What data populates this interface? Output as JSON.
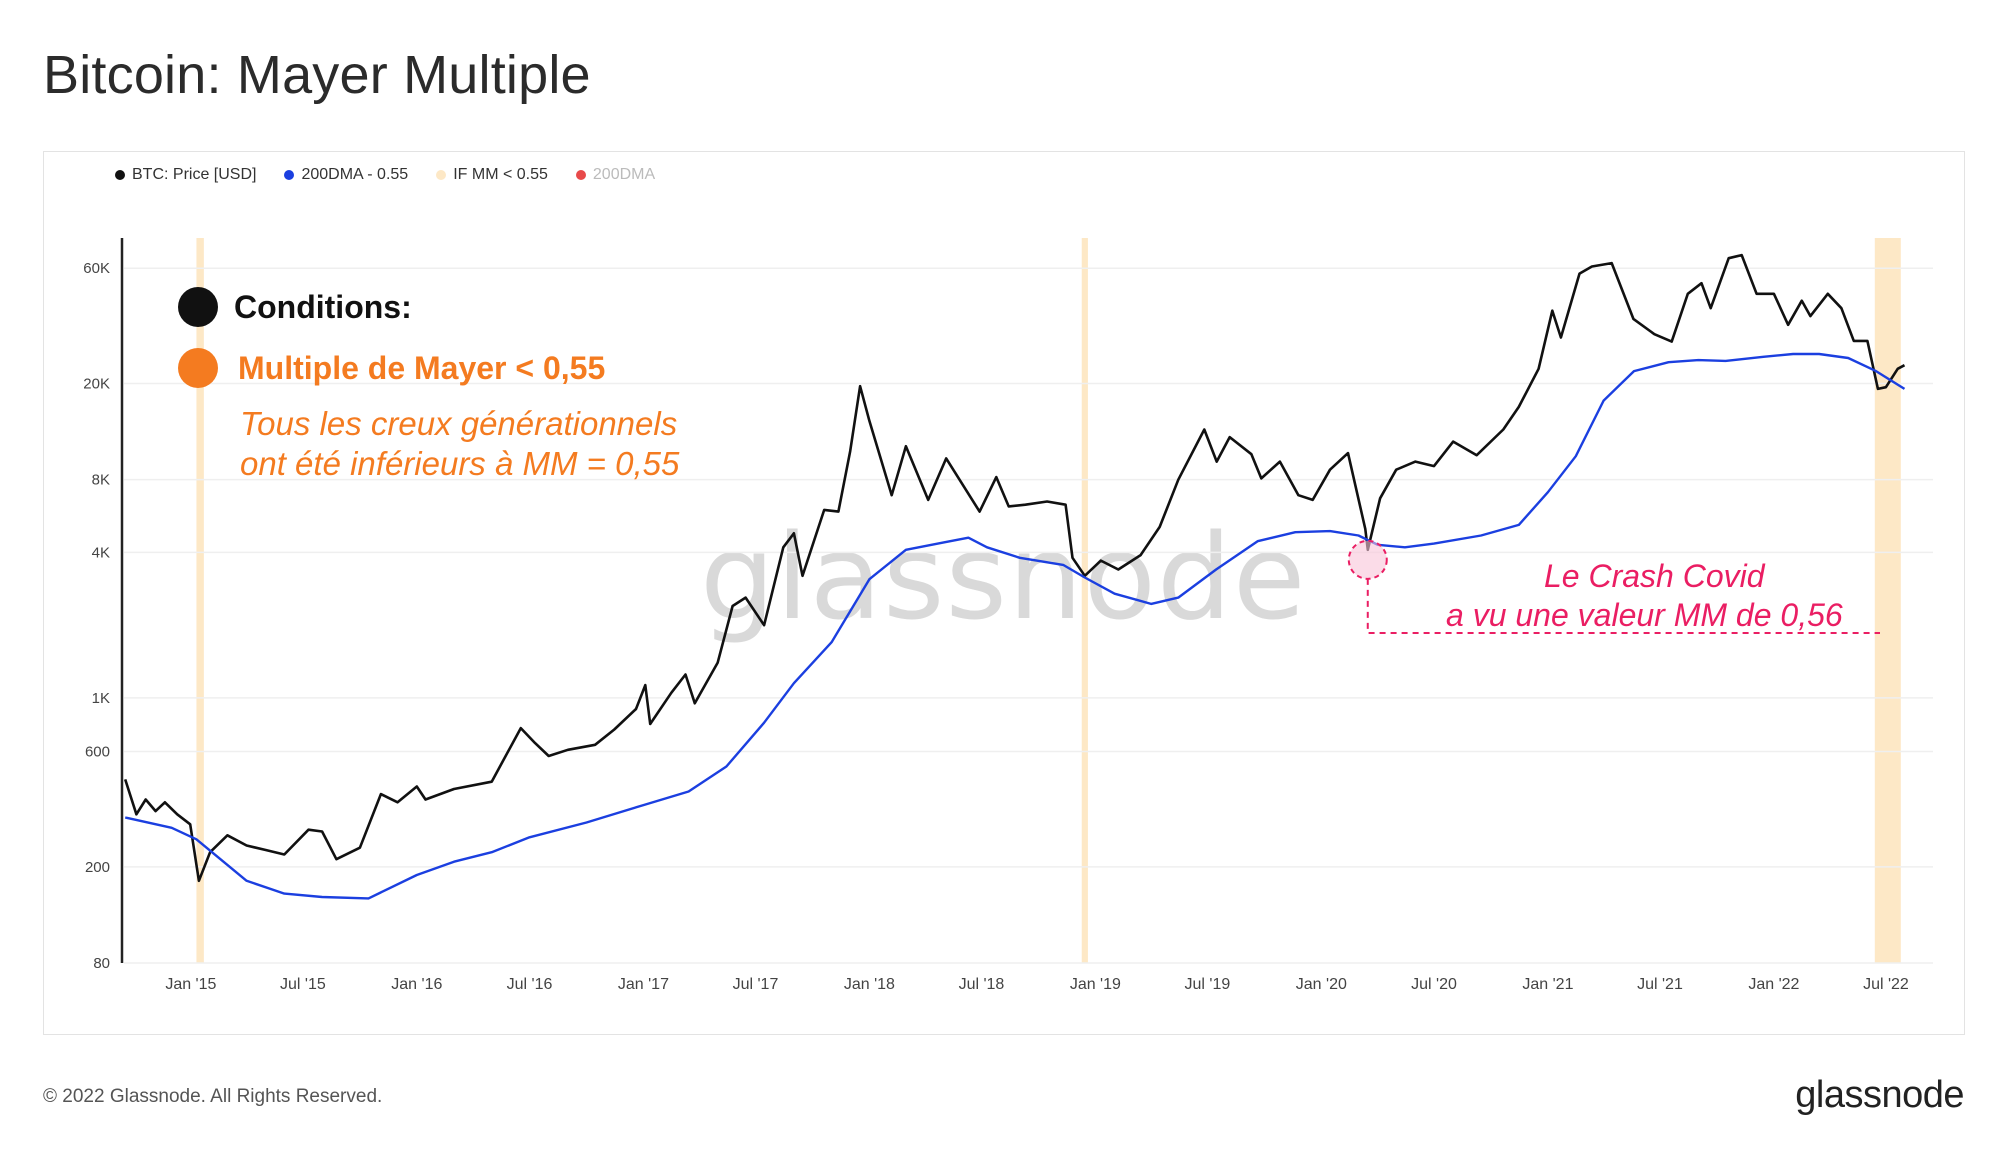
{
  "title": "Bitcoin: Mayer Multiple",
  "legend": [
    {
      "label": "BTC: Price [USD]",
      "color": "#111111",
      "muted": false
    },
    {
      "label": "200DMA - 0.55",
      "color": "#1b3fe0",
      "muted": false
    },
    {
      "label": "IF MM < 0.55",
      "color": "#fde8c6",
      "muted": false
    },
    {
      "label": "200DMA",
      "color": "#e84a4a",
      "muted": true
    }
  ],
  "annotations": {
    "conditions_title": "Conditions:",
    "condition": "Multiple de Mayer < 0,55",
    "note_line1": "Tous les creux générationnels",
    "note_line2": "ont été inférieurs à MM = 0,55",
    "covid_line1": "Le Crash Covid",
    "covid_line2": "a vu une valeur MM de 0,56"
  },
  "watermark": "glassnode",
  "footer": {
    "copyright": "© 2022 Glassnode. All Rights Reserved.",
    "logo": "glassnode"
  },
  "colors": {
    "price": "#111111",
    "dma": "#1b3fe0",
    "highlight": "#fde8c6",
    "accent_orange": "#f47b20",
    "accent_pink": "#ea1e63"
  },
  "chart_data": {
    "type": "line",
    "title": "Bitcoin: Mayer Multiple",
    "y_scale": "log",
    "ylim": [
      80,
      80000
    ],
    "y_ticks": [
      {
        "value": 80,
        "label": "80"
      },
      {
        "value": 200,
        "label": "200"
      },
      {
        "value": 600,
        "label": "600"
      },
      {
        "value": 1000,
        "label": "1K"
      },
      {
        "value": 4000,
        "label": "4K"
      },
      {
        "value": 8000,
        "label": "8K"
      },
      {
        "value": 20000,
        "label": "20K"
      },
      {
        "value": 60000,
        "label": "60K"
      }
    ],
    "xlim": [
      "2014-09-15",
      "2022-09-15"
    ],
    "x_ticks": [
      {
        "value": "2015-01-01",
        "label": "Jan '15"
      },
      {
        "value": "2015-07-01",
        "label": "Jul '15"
      },
      {
        "value": "2016-01-01",
        "label": "Jan '16"
      },
      {
        "value": "2016-07-01",
        "label": "Jul '16"
      },
      {
        "value": "2017-01-01",
        "label": "Jan '17"
      },
      {
        "value": "2017-07-01",
        "label": "Jul '17"
      },
      {
        "value": "2018-01-01",
        "label": "Jan '18"
      },
      {
        "value": "2018-07-01",
        "label": "Jul '18"
      },
      {
        "value": "2019-01-01",
        "label": "Jan '19"
      },
      {
        "value": "2019-07-01",
        "label": "Jul '19"
      },
      {
        "value": "2020-01-01",
        "label": "Jan '20"
      },
      {
        "value": "2020-07-01",
        "label": "Jul '20"
      },
      {
        "value": "2021-01-01",
        "label": "Jan '21"
      },
      {
        "value": "2021-07-01",
        "label": "Jul '21"
      },
      {
        "value": "2022-01-01",
        "label": "Jan '22"
      },
      {
        "value": "2022-07-01",
        "label": "Jul '22"
      }
    ],
    "series": [
      {
        "name": "BTC: Price [USD]",
        "color": "#111111",
        "points": [
          [
            "2014-09-17",
            460
          ],
          [
            "2014-10-05",
            330
          ],
          [
            "2014-10-20",
            380
          ],
          [
            "2014-11-05",
            340
          ],
          [
            "2014-11-20",
            370
          ],
          [
            "2014-12-10",
            330
          ],
          [
            "2014-12-31",
            300
          ],
          [
            "2015-01-14",
            175
          ],
          [
            "2015-02-01",
            230
          ],
          [
            "2015-03-01",
            270
          ],
          [
            "2015-04-01",
            245
          ],
          [
            "2015-05-01",
            235
          ],
          [
            "2015-06-01",
            225
          ],
          [
            "2015-07-10",
            285
          ],
          [
            "2015-08-01",
            280
          ],
          [
            "2015-08-24",
            215
          ],
          [
            "2015-10-01",
            240
          ],
          [
            "2015-11-04",
            400
          ],
          [
            "2015-12-01",
            370
          ],
          [
            "2016-01-01",
            430
          ],
          [
            "2016-01-15",
            380
          ],
          [
            "2016-03-01",
            420
          ],
          [
            "2016-05-01",
            450
          ],
          [
            "2016-06-17",
            750
          ],
          [
            "2016-07-10",
            650
          ],
          [
            "2016-08-01",
            575
          ],
          [
            "2016-09-01",
            610
          ],
          [
            "2016-10-15",
            640
          ],
          [
            "2016-11-15",
            740
          ],
          [
            "2016-12-20",
            900
          ],
          [
            "2017-01-04",
            1130
          ],
          [
            "2017-01-12",
            780
          ],
          [
            "2017-02-15",
            1050
          ],
          [
            "2017-03-10",
            1250
          ],
          [
            "2017-03-25",
            950
          ],
          [
            "2017-05-01",
            1400
          ],
          [
            "2017-05-25",
            2400
          ],
          [
            "2017-06-15",
            2600
          ],
          [
            "2017-07-15",
            2000
          ],
          [
            "2017-08-15",
            4200
          ],
          [
            "2017-09-01",
            4800
          ],
          [
            "2017-09-15",
            3200
          ],
          [
            "2017-10-20",
            6000
          ],
          [
            "2017-11-12",
            5900
          ],
          [
            "2017-12-01",
            10500
          ],
          [
            "2017-12-17",
            19500
          ],
          [
            "2018-01-01",
            14000
          ],
          [
            "2018-02-06",
            6900
          ],
          [
            "2018-03-01",
            11000
          ],
          [
            "2018-04-06",
            6600
          ],
          [
            "2018-05-05",
            9800
          ],
          [
            "2018-06-28",
            5900
          ],
          [
            "2018-07-25",
            8200
          ],
          [
            "2018-08-14",
            6200
          ],
          [
            "2018-09-10",
            6300
          ],
          [
            "2018-10-15",
            6500
          ],
          [
            "2018-11-14",
            6300
          ],
          [
            "2018-11-25",
            3800
          ],
          [
            "2018-12-15",
            3200
          ],
          [
            "2019-01-10",
            3700
          ],
          [
            "2019-02-07",
            3400
          ],
          [
            "2019-03-15",
            3900
          ],
          [
            "2019-04-15",
            5100
          ],
          [
            "2019-05-15",
            8000
          ],
          [
            "2019-06-26",
            12900
          ],
          [
            "2019-07-16",
            9500
          ],
          [
            "2019-08-06",
            12000
          ],
          [
            "2019-09-10",
            10200
          ],
          [
            "2019-09-26",
            8100
          ],
          [
            "2019-10-26",
            9500
          ],
          [
            "2019-11-25",
            6900
          ],
          [
            "2019-12-18",
            6600
          ],
          [
            "2020-01-15",
            8800
          ],
          [
            "2020-02-13",
            10300
          ],
          [
            "2020-03-12",
            5000
          ],
          [
            "2020-03-16",
            4100
          ],
          [
            "2020-04-05",
            6700
          ],
          [
            "2020-05-01",
            8800
          ],
          [
            "2020-06-01",
            9500
          ],
          [
            "2020-07-01",
            9100
          ],
          [
            "2020-08-01",
            11500
          ],
          [
            "2020-09-08",
            10100
          ],
          [
            "2020-10-21",
            12900
          ],
          [
            "2020-11-15",
            16000
          ],
          [
            "2020-12-17",
            23000
          ],
          [
            "2021-01-08",
            40000
          ],
          [
            "2021-01-22",
            31000
          ],
          [
            "2021-02-21",
            57000
          ],
          [
            "2021-03-13",
            61000
          ],
          [
            "2021-04-14",
            63000
          ],
          [
            "2021-05-19",
            37000
          ],
          [
            "2021-06-22",
            32000
          ],
          [
            "2021-07-20",
            29800
          ],
          [
            "2021-08-15",
            47000
          ],
          [
            "2021-09-06",
            52000
          ],
          [
            "2021-09-21",
            41000
          ],
          [
            "2021-10-20",
            66000
          ],
          [
            "2021-11-10",
            68000
          ],
          [
            "2021-12-04",
            47000
          ],
          [
            "2022-01-01",
            47000
          ],
          [
            "2022-01-24",
            35000
          ],
          [
            "2022-02-15",
            44000
          ],
          [
            "2022-03-01",
            38000
          ],
          [
            "2022-03-29",
            47000
          ],
          [
            "2022-04-20",
            41000
          ],
          [
            "2022-05-10",
            30000
          ],
          [
            "2022-06-01",
            30000
          ],
          [
            "2022-06-18",
            19000
          ],
          [
            "2022-07-01",
            19300
          ],
          [
            "2022-07-20",
            23000
          ],
          [
            "2022-07-31",
            23800
          ]
        ]
      },
      {
        "name": "200DMA - 0.55",
        "color": "#1b3fe0",
        "points": [
          [
            "2014-09-17",
            320
          ],
          [
            "2014-12-01",
            290
          ],
          [
            "2015-01-10",
            260
          ],
          [
            "2015-04-01",
            175
          ],
          [
            "2015-06-01",
            155
          ],
          [
            "2015-08-01",
            150
          ],
          [
            "2015-10-15",
            148
          ],
          [
            "2016-01-01",
            185
          ],
          [
            "2016-03-01",
            210
          ],
          [
            "2016-05-01",
            230
          ],
          [
            "2016-07-01",
            265
          ],
          [
            "2016-10-01",
            305
          ],
          [
            "2017-01-01",
            360
          ],
          [
            "2017-03-15",
            410
          ],
          [
            "2017-05-15",
            520
          ],
          [
            "2017-07-15",
            790
          ],
          [
            "2017-09-01",
            1150
          ],
          [
            "2017-11-01",
            1700
          ],
          [
            "2018-01-01",
            3100
          ],
          [
            "2018-03-01",
            4100
          ],
          [
            "2018-05-01",
            4400
          ],
          [
            "2018-06-10",
            4600
          ],
          [
            "2018-07-10",
            4200
          ],
          [
            "2018-09-01",
            3800
          ],
          [
            "2018-11-10",
            3550
          ],
          [
            "2018-12-15",
            3150
          ],
          [
            "2019-02-01",
            2700
          ],
          [
            "2019-04-01",
            2450
          ],
          [
            "2019-05-15",
            2600
          ],
          [
            "2019-07-15",
            3400
          ],
          [
            "2019-09-20",
            4450
          ],
          [
            "2019-11-20",
            4850
          ],
          [
            "2020-01-15",
            4900
          ],
          [
            "2020-03-01",
            4700
          ],
          [
            "2020-04-01",
            4300
          ],
          [
            "2020-05-15",
            4200
          ],
          [
            "2020-07-01",
            4350
          ],
          [
            "2020-09-15",
            4700
          ],
          [
            "2020-11-15",
            5200
          ],
          [
            "2021-01-01",
            7100
          ],
          [
            "2021-02-15",
            10000
          ],
          [
            "2021-04-01",
            17000
          ],
          [
            "2021-05-20",
            22500
          ],
          [
            "2021-07-15",
            24500
          ],
          [
            "2021-09-01",
            25000
          ],
          [
            "2021-10-15",
            24800
          ],
          [
            "2021-12-15",
            25800
          ],
          [
            "2022-02-01",
            26500
          ],
          [
            "2022-03-15",
            26500
          ],
          [
            "2022-05-01",
            25500
          ],
          [
            "2022-06-15",
            22500
          ],
          [
            "2022-07-31",
            19000
          ]
        ]
      }
    ],
    "highlight_ranges": [
      {
        "label": "IF MM < 0.55",
        "start": "2015-01-10",
        "end": "2015-01-22"
      },
      {
        "label": "IF MM < 0.55",
        "start": "2018-12-10",
        "end": "2018-12-20"
      },
      {
        "label": "IF MM < 0.55",
        "start": "2022-06-13",
        "end": "2022-07-25"
      }
    ],
    "markers": [
      {
        "label": "Covid crash",
        "date": "2020-03-16",
        "value": 4100
      }
    ]
  }
}
